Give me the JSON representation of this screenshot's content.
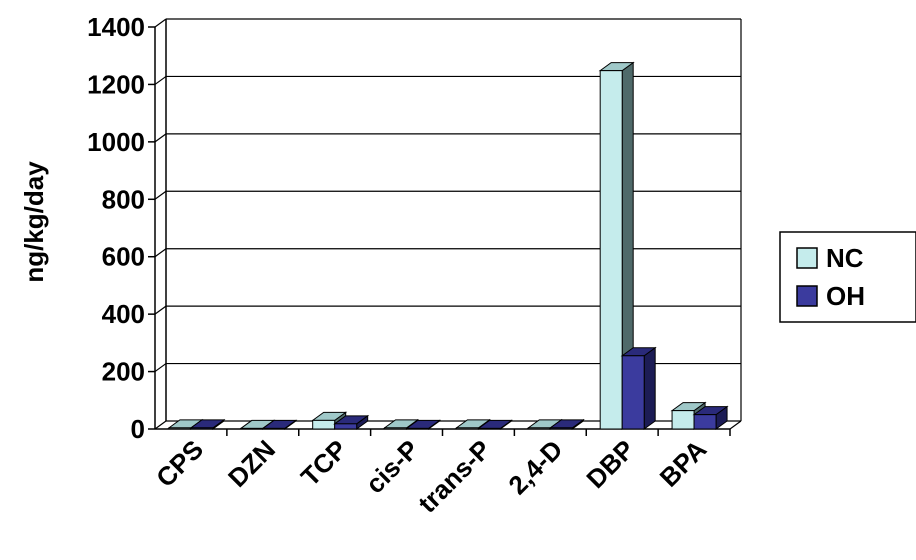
{
  "chart_data": {
    "type": "bar",
    "style": "3d-clustered-column",
    "categories": [
      "CPS",
      "DZN",
      "TCP",
      "cis-P",
      "trans-P",
      "2,4-D",
      "DBP",
      "BPA"
    ],
    "series": [
      {
        "name": "NC",
        "values": [
          4,
          2,
          30,
          4,
          4,
          4,
          1248,
          64
        ],
        "color": "#c5ecec"
      },
      {
        "name": "OH",
        "values": [
          4,
          2,
          18,
          2,
          2,
          4,
          255,
          50
        ],
        "color": "#3b3b9e"
      }
    ],
    "ylabel": "ng/kg/day",
    "xlabel": "",
    "title": "",
    "ylim": [
      0,
      1400
    ],
    "yticks": [
      0,
      200,
      400,
      600,
      800,
      1000,
      1200,
      1400
    ],
    "grid": true,
    "legend_position": "right"
  }
}
